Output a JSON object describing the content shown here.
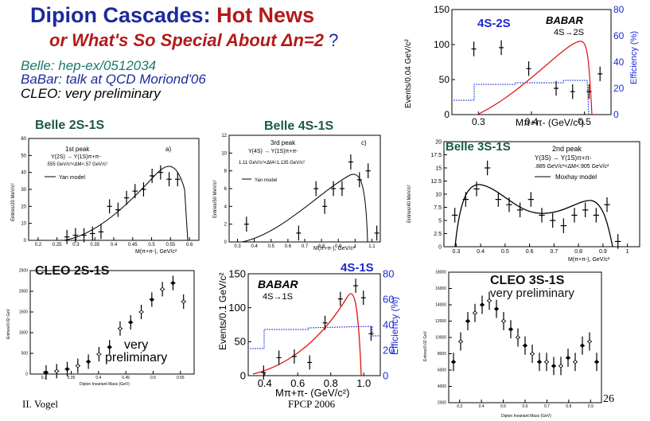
{
  "title": {
    "line1_a": "Dipion Cascades:",
    "line1_b": "Hot News",
    "line2_a": "or What's So Special About ",
    "line2_delta": "Δn=2",
    "line2_q": " ?"
  },
  "refs": {
    "belle": "Belle:   hep-ex/0512034",
    "babar": "BaBar: talk at QCD Moriond'06",
    "cleo": "CLEO:  very preliminary"
  },
  "panels": {
    "babar_4s2s": {
      "label": "4S-2S",
      "logo": "BABAR",
      "trans": "4S→2S",
      "ylabel": "Events/0.04 GeV/c²",
      "y2label": "Efficiency (%)",
      "xlabel": "Mπ+π- (GeV/c²)",
      "yticks": [
        "150",
        "100",
        "50",
        "0"
      ],
      "y2ticks": [
        "80",
        "60",
        "40",
        "20",
        "0"
      ],
      "xticks": [
        "0.3",
        "0.4",
        "0.5"
      ]
    },
    "belle_2s1s": {
      "label": "Belle 2S-1S",
      "peak": "1st peak",
      "decay": "Υ(2S) → Υ(1S)π+π-",
      "cut": ".555 GeV/c²<ΔM<.57 GeV/c²",
      "model": "Yan model",
      "tag": "a)",
      "ylabel": "Entries/20 MeV/c²",
      "xlabel": "M(π+π-), GeV/c²",
      "xticks": [
        "0.2",
        "0.25",
        "0.3",
        "0.35",
        "0.4",
        "0.45",
        "0.5",
        "0.55",
        "0.6"
      ],
      "yticks": [
        "60",
        "50",
        "40",
        "30",
        "20",
        "10",
        "0"
      ]
    },
    "belle_4s1s": {
      "label": "Belle 4S-1S",
      "peak": "3rd peak",
      "decay": "Υ(4S) → Υ(1S)π+π-",
      "cut": "1.11 GeV/c²<ΔM<1.135 GeV/c²",
      "model": "Yan model",
      "tag": "c)",
      "ylabel": "Entries/50 MeV/c²",
      "xlabel": "M(π+π-), GeV/c²",
      "xticks": [
        "0.3",
        "0.4",
        "0.5",
        "0.6",
        "0.7",
        "0.8",
        "0.9",
        "1",
        "1.1"
      ],
      "yticks": [
        "12",
        "10",
        "8",
        "6",
        "4",
        "2",
        "0"
      ]
    },
    "belle_3s1s": {
      "label": "Belle 3S-1S",
      "peak": "2nd peak",
      "decay": "Υ(3S) → Υ(1S)π+π-",
      "cut": ".885 GeV/c²<ΔM<.905 GeV/c²",
      "model": "Moxhay model",
      "ylabel": "Entries/40 MeV/c²",
      "xlabel": "M(π+π-), GeV/c²",
      "xticks": [
        "0.3",
        "0.4",
        "0.5",
        "0.6",
        "0.7",
        "0.8",
        "0.9",
        "1"
      ],
      "yticks": [
        "20",
        "17.5",
        "15",
        "12.5",
        "10",
        "7.5",
        "5",
        "2.5",
        "0"
      ]
    },
    "cleo_2s1s": {
      "label": "CLEO 2S-1S",
      "note1": "very",
      "note2": "preliminary",
      "ylabel": "Entries/0.02 GeV",
      "xlabel": "Dipion Invariant Mass (GeV)",
      "yticks": [
        "2500",
        "2000",
        "1500",
        "1000",
        "500",
        "0"
      ],
      "xticks": [
        "0.3",
        "0.35",
        "0.4",
        "0.45",
        "0.5",
        "0.55"
      ]
    },
    "babar_4s1s": {
      "label": "4S-1S",
      "logo": "BABAR",
      "trans": "4S→1S",
      "ylabel": "Events/0.1 GeV/c²",
      "y2label": "Efficiency (%)",
      "xlabel": "Mπ+π- (GeV/c²)",
      "yticks": [
        "150",
        "100",
        "50",
        "0"
      ],
      "y2ticks": [
        "80",
        "60",
        "40",
        "20",
        "0"
      ],
      "xticks": [
        "0.4",
        "0.6",
        "0.8",
        "1.0"
      ]
    },
    "cleo_3s1s": {
      "label": "CLEO 3S-1S",
      "note": "very preliminary",
      "ylabel": "Entries/0.02 GeV",
      "xlabel": "Dipion Invariant Mass (GeV)",
      "yticks": [
        "18000",
        "16000",
        "14000",
        "12000",
        "10000",
        "8000",
        "6000",
        "4000",
        "2000"
      ],
      "xticks": [
        "0.3",
        "0.4",
        "0.5",
        "0.6",
        "0.7",
        "0.8",
        "0.9"
      ]
    }
  },
  "footer": {
    "author": "II. Vogel",
    "conf": "FPCP 2006",
    "page": "26"
  },
  "chart_data": [
    {
      "type": "scatter",
      "title": "4S-2S",
      "x": [
        0.31,
        0.36,
        0.41,
        0.46,
        0.49,
        0.52,
        0.54
      ],
      "y": [
        100,
        102,
        70,
        40,
        35,
        35,
        62
      ],
      "ylim": [
        0,
        160
      ],
      "xlim": [
        0.27,
        0.56
      ]
    },
    {
      "type": "scatter",
      "title": "Belle 2S-1S",
      "x": [
        0.29,
        0.31,
        0.33,
        0.35,
        0.37,
        0.39,
        0.41,
        0.43,
        0.45,
        0.47,
        0.49,
        0.51,
        0.53,
        0.55
      ],
      "y": [
        2,
        3,
        3,
        4,
        5,
        20,
        18,
        25,
        29,
        30,
        38,
        40,
        36,
        36
      ],
      "ylim": [
        0,
        60
      ],
      "xlim": [
        0.2,
        0.6
      ]
    },
    {
      "type": "scatter",
      "title": "Belle 4S-1S",
      "x": [
        0.35,
        0.65,
        0.75,
        0.8,
        0.85,
        0.9,
        0.95,
        1.0,
        1.05,
        1.1
      ],
      "y": [
        2,
        1,
        6,
        4,
        6,
        6,
        9,
        7,
        8,
        1
      ],
      "ylim": [
        0,
        12
      ],
      "xlim": [
        0.25,
        1.12
      ]
    },
    {
      "type": "scatter",
      "title": "Belle 3S-1S",
      "x": [
        0.32,
        0.36,
        0.4,
        0.44,
        0.48,
        0.52,
        0.56,
        0.6,
        0.64,
        0.68,
        0.72,
        0.76,
        0.8,
        0.84,
        0.88,
        0.92
      ],
      "y": [
        6,
        9,
        11,
        15,
        9,
        8,
        7,
        9,
        6,
        5,
        4,
        6,
        7,
        6,
        8,
        1
      ],
      "ylim": [
        0,
        20
      ],
      "xlim": [
        0.28,
        1.0
      ]
    },
    {
      "type": "scatter",
      "title": "CLEO 2S-1S",
      "x": [
        0.3,
        0.32,
        0.34,
        0.36,
        0.38,
        0.4,
        0.42,
        0.44,
        0.46,
        0.48,
        0.5,
        0.52,
        0.54,
        0.56
      ],
      "y": [
        40,
        70,
        120,
        200,
        300,
        480,
        650,
        1100,
        1250,
        1500,
        1800,
        2050,
        2200,
        1750
      ],
      "ylim": [
        0,
        2500
      ],
      "xlim": [
        0.27,
        0.58
      ]
    },
    {
      "type": "scatter",
      "title": "4S-1S",
      "x": [
        0.4,
        0.5,
        0.6,
        0.7,
        0.8,
        0.9,
        1.0,
        1.05,
        1.1
      ],
      "y": [
        -5,
        20,
        22,
        12,
        78,
        118,
        140,
        120,
        60
      ],
      "ylim": [
        -10,
        160
      ],
      "xlim": [
        0.3,
        1.16
      ]
    },
    {
      "type": "scatter",
      "title": "CLEO 3S-1S",
      "x": [
        0.3,
        0.33,
        0.36,
        0.39,
        0.42,
        0.45,
        0.48,
        0.51,
        0.54,
        0.57,
        0.6,
        0.63,
        0.66,
        0.69,
        0.72,
        0.75,
        0.78,
        0.81,
        0.84,
        0.87,
        0.9
      ],
      "y": [
        7000,
        9500,
        12000,
        13000,
        14000,
        14500,
        13500,
        12000,
        11000,
        10000,
        9000,
        8000,
        7000,
        7000,
        6500,
        6500,
        7500,
        7000,
        9000,
        9500,
        7000
      ],
      "ylim": [
        2000,
        18000
      ],
      "xlim": [
        0.28,
        0.92
      ]
    }
  ]
}
